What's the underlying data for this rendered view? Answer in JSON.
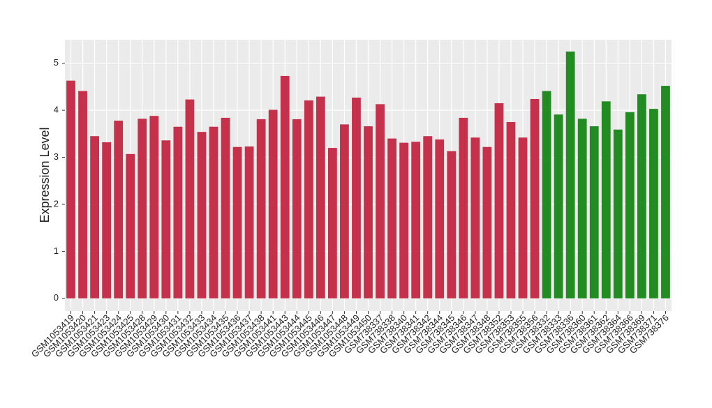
{
  "chart_data": {
    "type": "bar",
    "ylabel": "Expression Level",
    "categories": [
      "GSM1053419",
      "GSM1053420",
      "GSM1053421",
      "GSM1053423",
      "GSM1053424",
      "GSM1053425",
      "GSM1053428",
      "GSM1053429",
      "GSM1053430",
      "GSM1053431",
      "GSM1053432",
      "GSM1053433",
      "GSM1053434",
      "GSM1053435",
      "GSM1053436",
      "GSM1053437",
      "GSM1053438",
      "GSM1053441",
      "GSM1053443",
      "GSM1053444",
      "GSM1053445",
      "GSM1053446",
      "GSM1053447",
      "GSM1053448",
      "GSM1053449",
      "GSM1053450",
      "GSM738337",
      "GSM738338",
      "GSM738340",
      "GSM738341",
      "GSM738342",
      "GSM738344",
      "GSM738345",
      "GSM738346",
      "GSM738347",
      "GSM738348",
      "GSM738352",
      "GSM738353",
      "GSM738355",
      "GSM738356",
      "GSM738332",
      "GSM738333",
      "GSM738336",
      "GSM738360",
      "GSM738361",
      "GSM738362",
      "GSM738364",
      "GSM738366",
      "GSM738369",
      "GSM738371",
      "GSM738376"
    ],
    "values": [
      4.63,
      4.41,
      3.45,
      3.32,
      3.78,
      3.07,
      3.82,
      3.88,
      3.36,
      3.65,
      4.23,
      3.54,
      3.65,
      3.84,
      3.22,
      3.23,
      3.81,
      4.01,
      4.73,
      3.81,
      4.21,
      4.29,
      3.2,
      3.7,
      4.27,
      3.66,
      4.13,
      3.4,
      3.31,
      3.33,
      3.45,
      3.38,
      3.13,
      3.84,
      3.42,
      3.22,
      4.15,
      3.75,
      3.42,
      4.24,
      4.41,
      3.91,
      5.25,
      3.82,
      3.66,
      4.19,
      3.59,
      3.96,
      4.34,
      4.03,
      4.52
    ],
    "colors": [
      "#c5314a",
      "#c5314a",
      "#c5314a",
      "#c5314a",
      "#c5314a",
      "#c5314a",
      "#c5314a",
      "#c5314a",
      "#c5314a",
      "#c5314a",
      "#c5314a",
      "#c5314a",
      "#c5314a",
      "#c5314a",
      "#c5314a",
      "#c5314a",
      "#c5314a",
      "#c5314a",
      "#c5314a",
      "#c5314a",
      "#c5314a",
      "#c5314a",
      "#c5314a",
      "#c5314a",
      "#c5314a",
      "#c5314a",
      "#c5314a",
      "#c5314a",
      "#c5314a",
      "#c5314a",
      "#c5314a",
      "#c5314a",
      "#c5314a",
      "#c5314a",
      "#c5314a",
      "#c5314a",
      "#c5314a",
      "#c5314a",
      "#c5314a",
      "#c5314a",
      "#228b22",
      "#228b22",
      "#228b22",
      "#228b22",
      "#228b22",
      "#228b22",
      "#228b22",
      "#228b22",
      "#228b22",
      "#228b22",
      "#228b22"
    ],
    "ylim": [
      -0.27,
      5.5
    ],
    "yticks": [
      0,
      1,
      2,
      3,
      4,
      5
    ],
    "grid": true
  }
}
